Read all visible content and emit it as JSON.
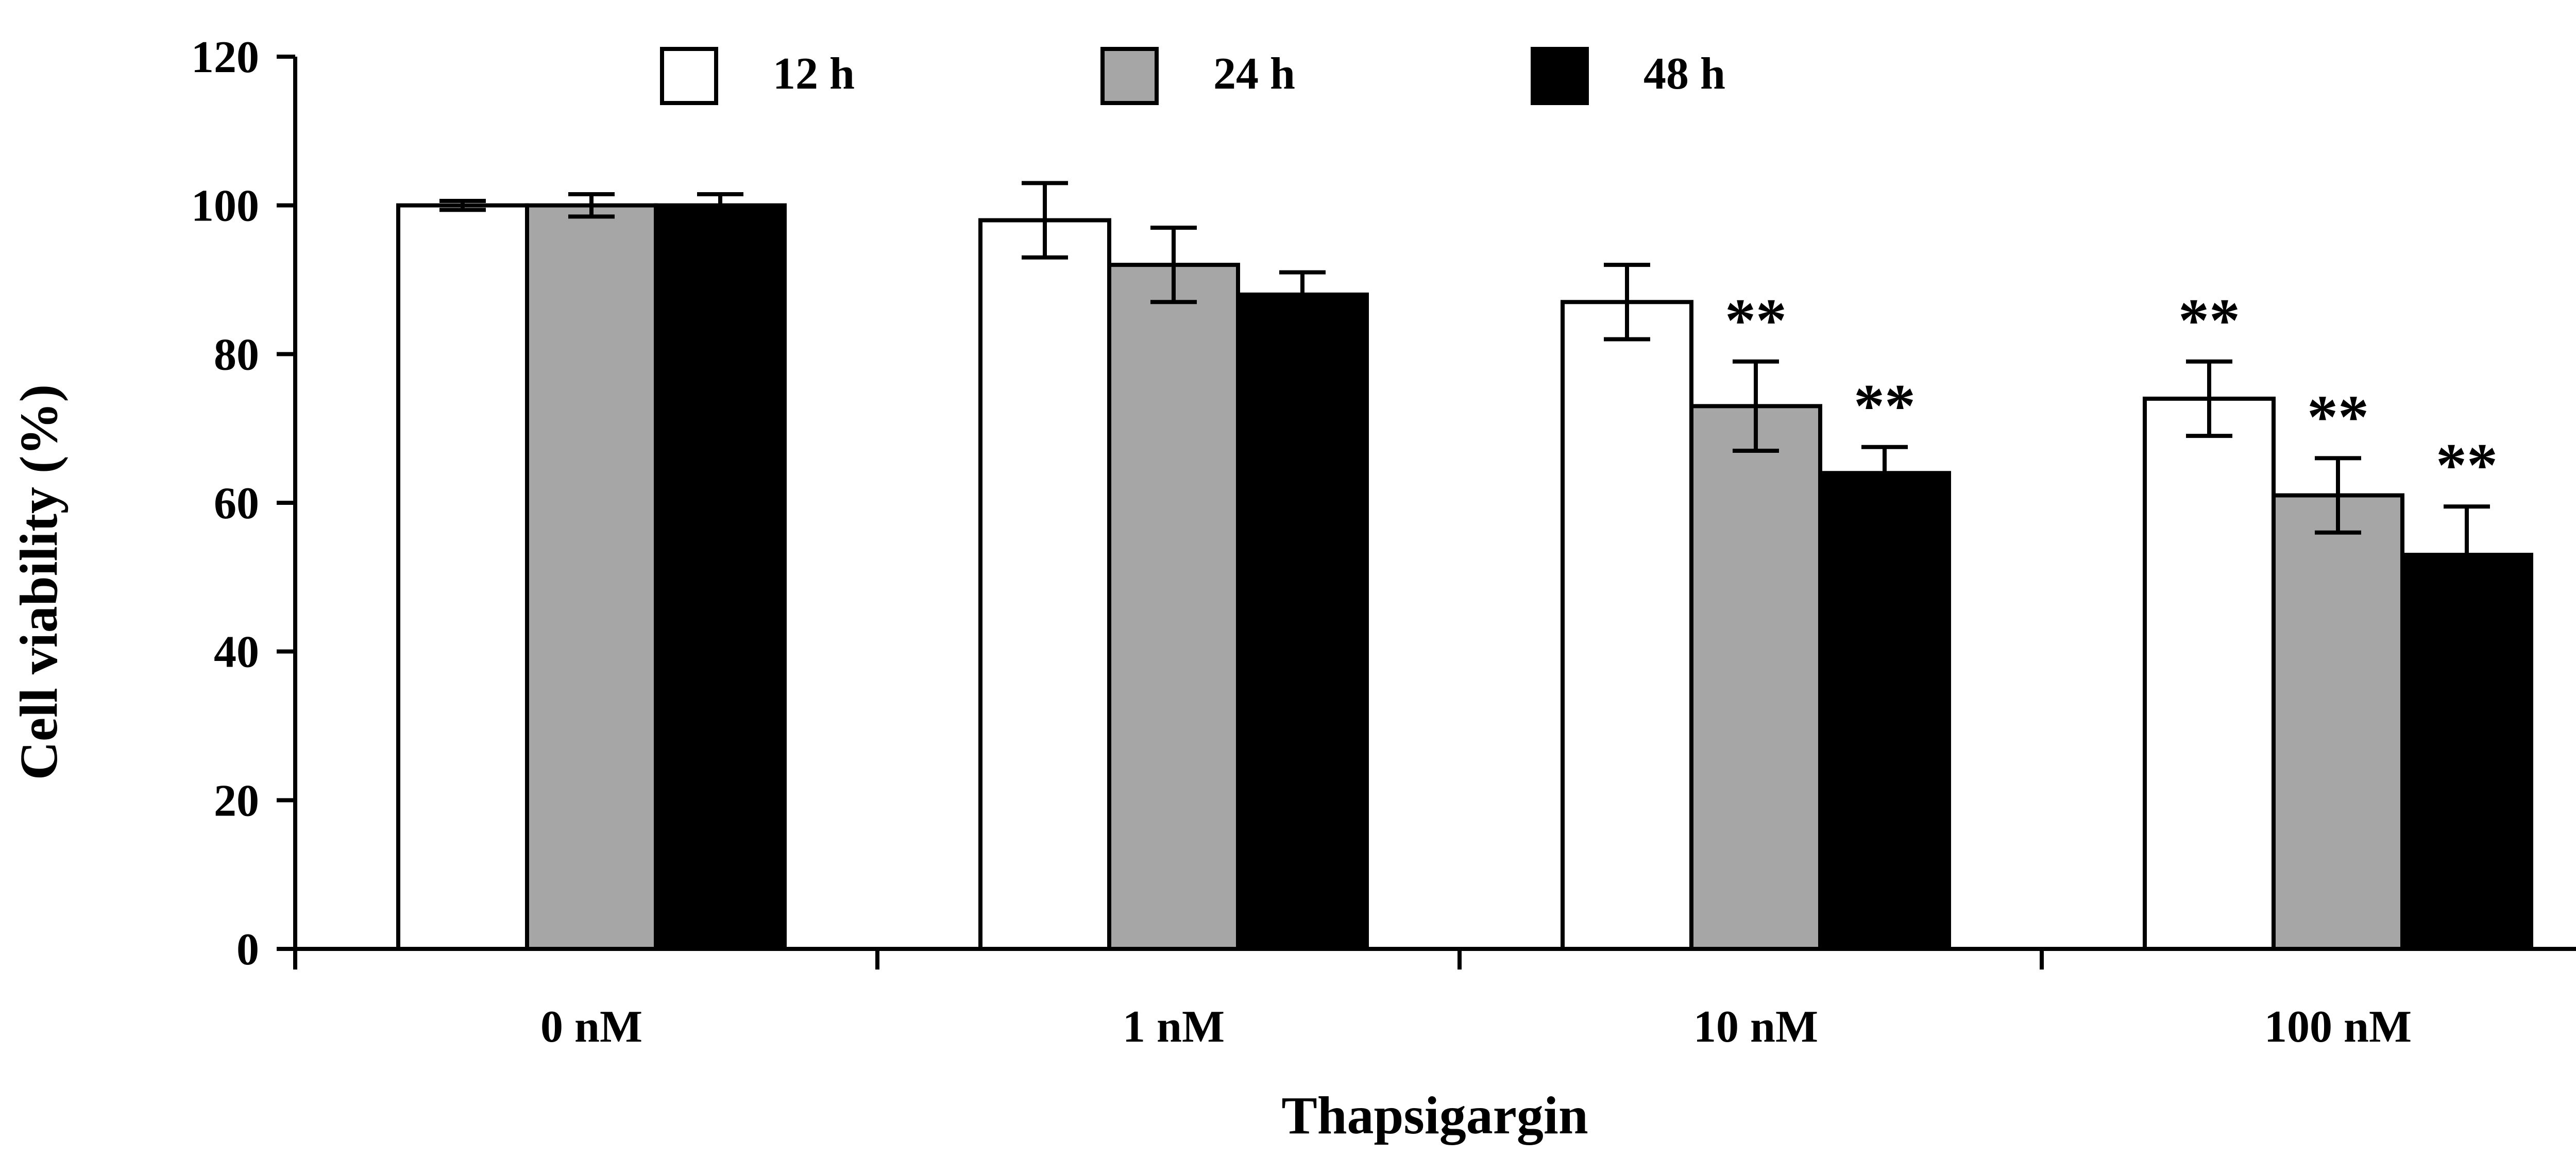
{
  "chart_data": {
    "type": "bar",
    "xlabel": "Thapsigargin",
    "ylabel": "Cell viability (%)",
    "ylim": [
      0,
      120
    ],
    "yticks": [
      0,
      20,
      40,
      60,
      80,
      100,
      120
    ],
    "categories": [
      "0 nM",
      "1 nM",
      "10 nM",
      "100 nM"
    ],
    "legend_position": "top",
    "series": [
      {
        "name": "12 h",
        "color": "#ffffff",
        "values": [
          100,
          98,
          87,
          74
        ],
        "errors": [
          0.6,
          5,
          5,
          5
        ],
        "significance": [
          "",
          "",
          "",
          "**"
        ]
      },
      {
        "name": "24 h",
        "color": "#a6a6a6",
        "values": [
          100,
          92,
          73,
          61
        ],
        "errors": [
          1.5,
          5,
          6,
          5
        ],
        "significance": [
          "",
          "",
          "**",
          "**"
        ]
      },
      {
        "name": "48 h",
        "color": "#000000",
        "values": [
          100,
          88,
          64,
          53
        ],
        "errors": [
          1.5,
          3,
          3.5,
          6.5
        ],
        "significance": [
          "",
          "",
          "**",
          "**"
        ]
      }
    ]
  }
}
